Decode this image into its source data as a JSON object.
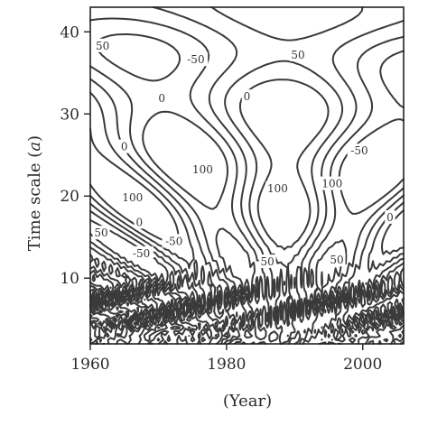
{
  "chart_data": {
    "type": "heatmap",
    "subtype": "contour",
    "title": "",
    "xlabel": "(Year)",
    "ylabel": "Time scale (",
    "ylabel_italic": "a",
    "ylabel_end": ")",
    "xlim": [
      1960,
      2006
    ],
    "ylim": [
      2,
      43
    ],
    "x_ticks": [
      1960,
      1980,
      2000
    ],
    "y_ticks": [
      10,
      20,
      30,
      40
    ],
    "x_tick_labels": [
      "1960",
      "1980",
      "2000"
    ],
    "y_tick_labels": [
      "10",
      "20",
      "30",
      "40"
    ],
    "grid": false,
    "line_color": "#3a3a3a",
    "contour_levels": [
      -100,
      -50,
      0,
      50,
      100
    ],
    "contour_labels": [
      {
        "x": 1961.8,
        "y": 38.3,
        "text": "50"
      },
      {
        "x": 1965.0,
        "y": 26.0,
        "text": "0"
      },
      {
        "x": 1966.2,
        "y": 19.8,
        "text": "100"
      },
      {
        "x": 1961.6,
        "y": 15.5,
        "text": "50"
      },
      {
        "x": 1967.2,
        "y": 16.8,
        "text": "0"
      },
      {
        "x": 1967.5,
        "y": 13.0,
        "text": "-50"
      },
      {
        "x": 1970.5,
        "y": 31.9,
        "text": "0"
      },
      {
        "x": 1975.5,
        "y": 36.6,
        "text": "-50"
      },
      {
        "x": 1976.5,
        "y": 23.2,
        "text": "100"
      },
      {
        "x": 1972.3,
        "y": 14.5,
        "text": "-50"
      },
      {
        "x": 1983.0,
        "y": 32.1,
        "text": "0"
      },
      {
        "x": 1990.5,
        "y": 37.2,
        "text": "50"
      },
      {
        "x": 1987.5,
        "y": 20.9,
        "text": "100"
      },
      {
        "x": 1995.5,
        "y": 21.5,
        "text": "100"
      },
      {
        "x": 1999.5,
        "y": 25.5,
        "text": "-50"
      },
      {
        "x": 2004.0,
        "y": 17.4,
        "text": "0"
      },
      {
        "x": 1986.0,
        "y": 12.0,
        "text": "50"
      },
      {
        "x": 1996.2,
        "y": 12.2,
        "text": "50"
      }
    ]
  }
}
